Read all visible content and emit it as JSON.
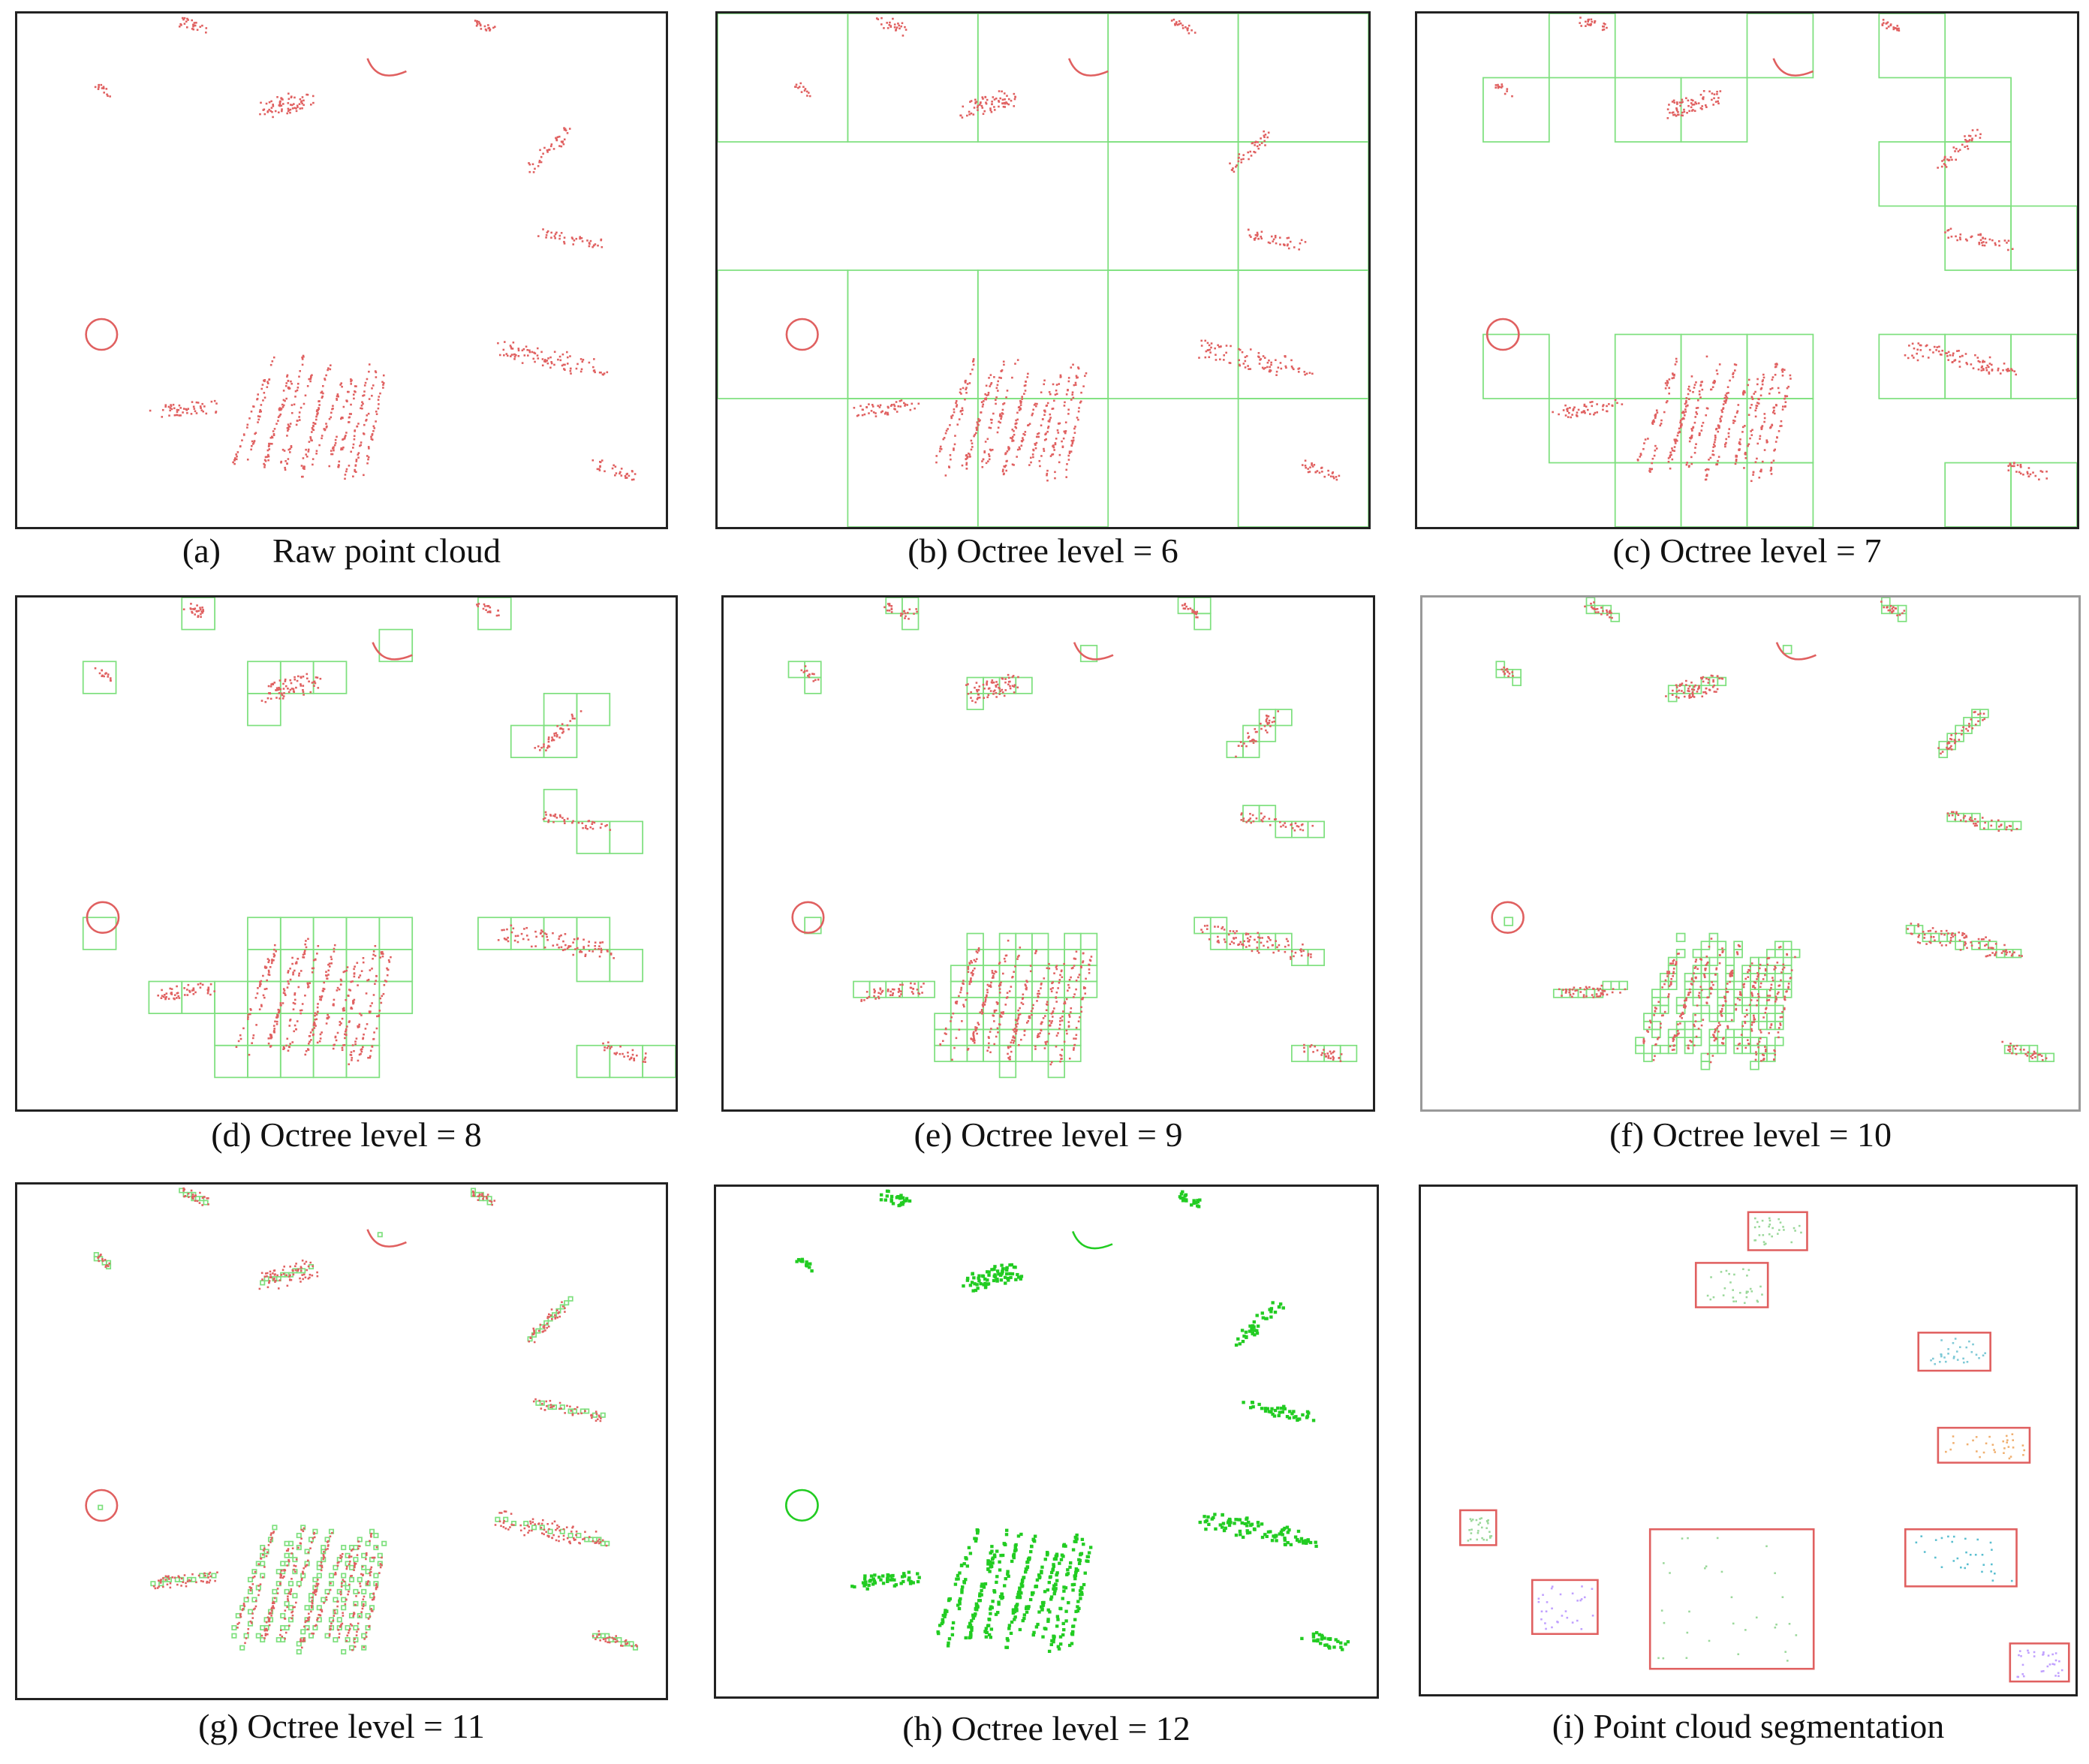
{
  "figure": {
    "panels": [
      {
        "id": "a",
        "letter": "(a)",
        "caption": "Raw point cloud",
        "mode": "raw",
        "level": null
      },
      {
        "id": "b",
        "letter": "(b)",
        "caption": "Octree level = 6",
        "mode": "octree",
        "level": 6
      },
      {
        "id": "c",
        "letter": "(c)",
        "caption": "Octree level = 7",
        "mode": "octree",
        "level": 7
      },
      {
        "id": "d",
        "letter": "(d)",
        "caption": "Octree level = 8",
        "mode": "octree",
        "level": 8
      },
      {
        "id": "e",
        "letter": "(e)",
        "caption": "Octree level = 9",
        "mode": "octree",
        "level": 9
      },
      {
        "id": "f",
        "letter": "(f)",
        "caption": "Octree level = 10",
        "mode": "octree",
        "level": 10
      },
      {
        "id": "g",
        "letter": "(g)",
        "caption": "Octree level = 11",
        "mode": "octree",
        "level": 11
      },
      {
        "id": "h",
        "letter": "(h)",
        "caption": "Octree level = 12",
        "mode": "filled",
        "level": 12
      },
      {
        "id": "i",
        "letter": "(i)",
        "caption": "Point cloud segmentation",
        "mode": "segmentation",
        "level": null
      }
    ],
    "colors": {
      "points": "#e06060",
      "grid": "#7ee07e",
      "filled": "#22cc22",
      "box": "#e06060",
      "segments": [
        "#9bd89b",
        "#7ec9d6",
        "#f0b070",
        "#5bbfd0",
        "#c0a0ff"
      ]
    }
  }
}
